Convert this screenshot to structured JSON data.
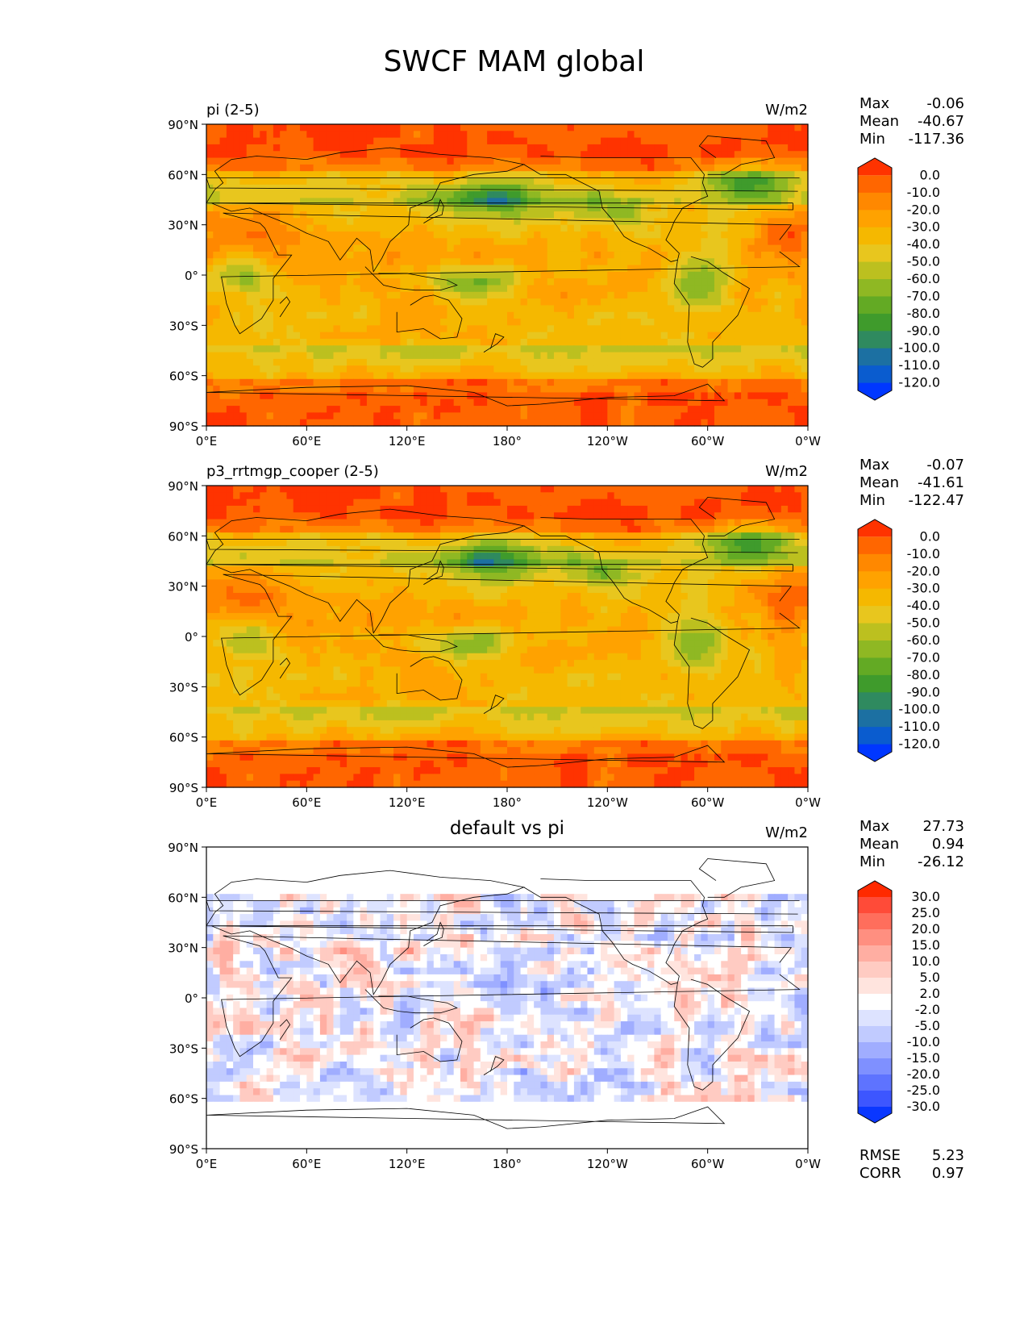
{
  "title": "SWCF MAM global",
  "axes": {
    "lat_ticks": [
      "90°N",
      "60°N",
      "30°N",
      "0°",
      "30°S",
      "60°S",
      "90°S"
    ],
    "lon_ticks": [
      "0°E",
      "60°E",
      "120°E",
      "180°",
      "120°W",
      "60°W",
      "0°W"
    ]
  },
  "chart_data": [
    {
      "type": "heatmap",
      "title_left": "pi (2-5)",
      "title_center": "",
      "units": "W/m2",
      "stats": {
        "max_label": "Max",
        "max": "-0.06",
        "mean_label": "Mean",
        "mean": "-40.67",
        "min_label": "Min",
        "min": "-117.36"
      },
      "colorbar": {
        "levels": [
          "0.0",
          "-10.0",
          "-20.0",
          "-30.0",
          "-40.0",
          "-50.0",
          "-60.0",
          "-70.0",
          "-80.0",
          "-90.0",
          "-100.0",
          "-110.0",
          "-120.0"
        ],
        "colors": [
          "#ff3300",
          "#ff6600",
          "#ff8800",
          "#ffa200",
          "#f5b800",
          "#e8c61e",
          "#bcc01f",
          "#8fb823",
          "#63aa24",
          "#3f9b2c",
          "#2f8a5f",
          "#1c70a2",
          "#0a5ccf",
          "#0037ff"
        ]
      },
      "field": "control_swcf"
    },
    {
      "type": "heatmap",
      "title_left": "p3_rrtmgp_cooper (2-5)",
      "title_center": "",
      "units": "W/m2",
      "stats": {
        "max_label": "Max",
        "max": "-0.07",
        "mean_label": "Mean",
        "mean": "-41.61",
        "min_label": "Min",
        "min": "-122.47"
      },
      "colorbar": {
        "levels": [
          "0.0",
          "-10.0",
          "-20.0",
          "-30.0",
          "-40.0",
          "-50.0",
          "-60.0",
          "-70.0",
          "-80.0",
          "-90.0",
          "-100.0",
          "-110.0",
          "-120.0"
        ],
        "colors": [
          "#ff3300",
          "#ff6600",
          "#ff8800",
          "#ffa200",
          "#f5b800",
          "#e8c61e",
          "#bcc01f",
          "#8fb823",
          "#63aa24",
          "#3f9b2c",
          "#2f8a5f",
          "#1c70a2",
          "#0a5ccf",
          "#0037ff"
        ]
      },
      "field": "test_swcf"
    },
    {
      "type": "heatmap",
      "title_left": "",
      "title_center": "default vs pi",
      "units": "W/m2",
      "stats": {
        "max_label": "Max",
        "max": "27.73",
        "mean_label": "Mean",
        "mean": "0.94",
        "min_label": "Min",
        "min": "-26.12"
      },
      "bottom_stats": {
        "rmse_label": "RMSE",
        "rmse": "5.23",
        "corr_label": "CORR",
        "corr": "0.97"
      },
      "colorbar": {
        "levels": [
          "30.0",
          "25.0",
          "20.0",
          "15.0",
          "10.0",
          "5.0",
          "2.0",
          "-2.0",
          "-5.0",
          "-10.0",
          "-15.0",
          "-20.0",
          "-25.0",
          "-30.0"
        ],
        "colors": [
          "#ff2a00",
          "#ff4b38",
          "#ff6e5c",
          "#ff8f80",
          "#ffaea2",
          "#ffcbc2",
          "#ffe4de",
          "#ffffff",
          "#dde3ff",
          "#c1cbff",
          "#a0adff",
          "#7f90ff",
          "#5e73ff",
          "#3d56ff",
          "#0a37ff"
        ]
      },
      "field": "difference"
    }
  ]
}
